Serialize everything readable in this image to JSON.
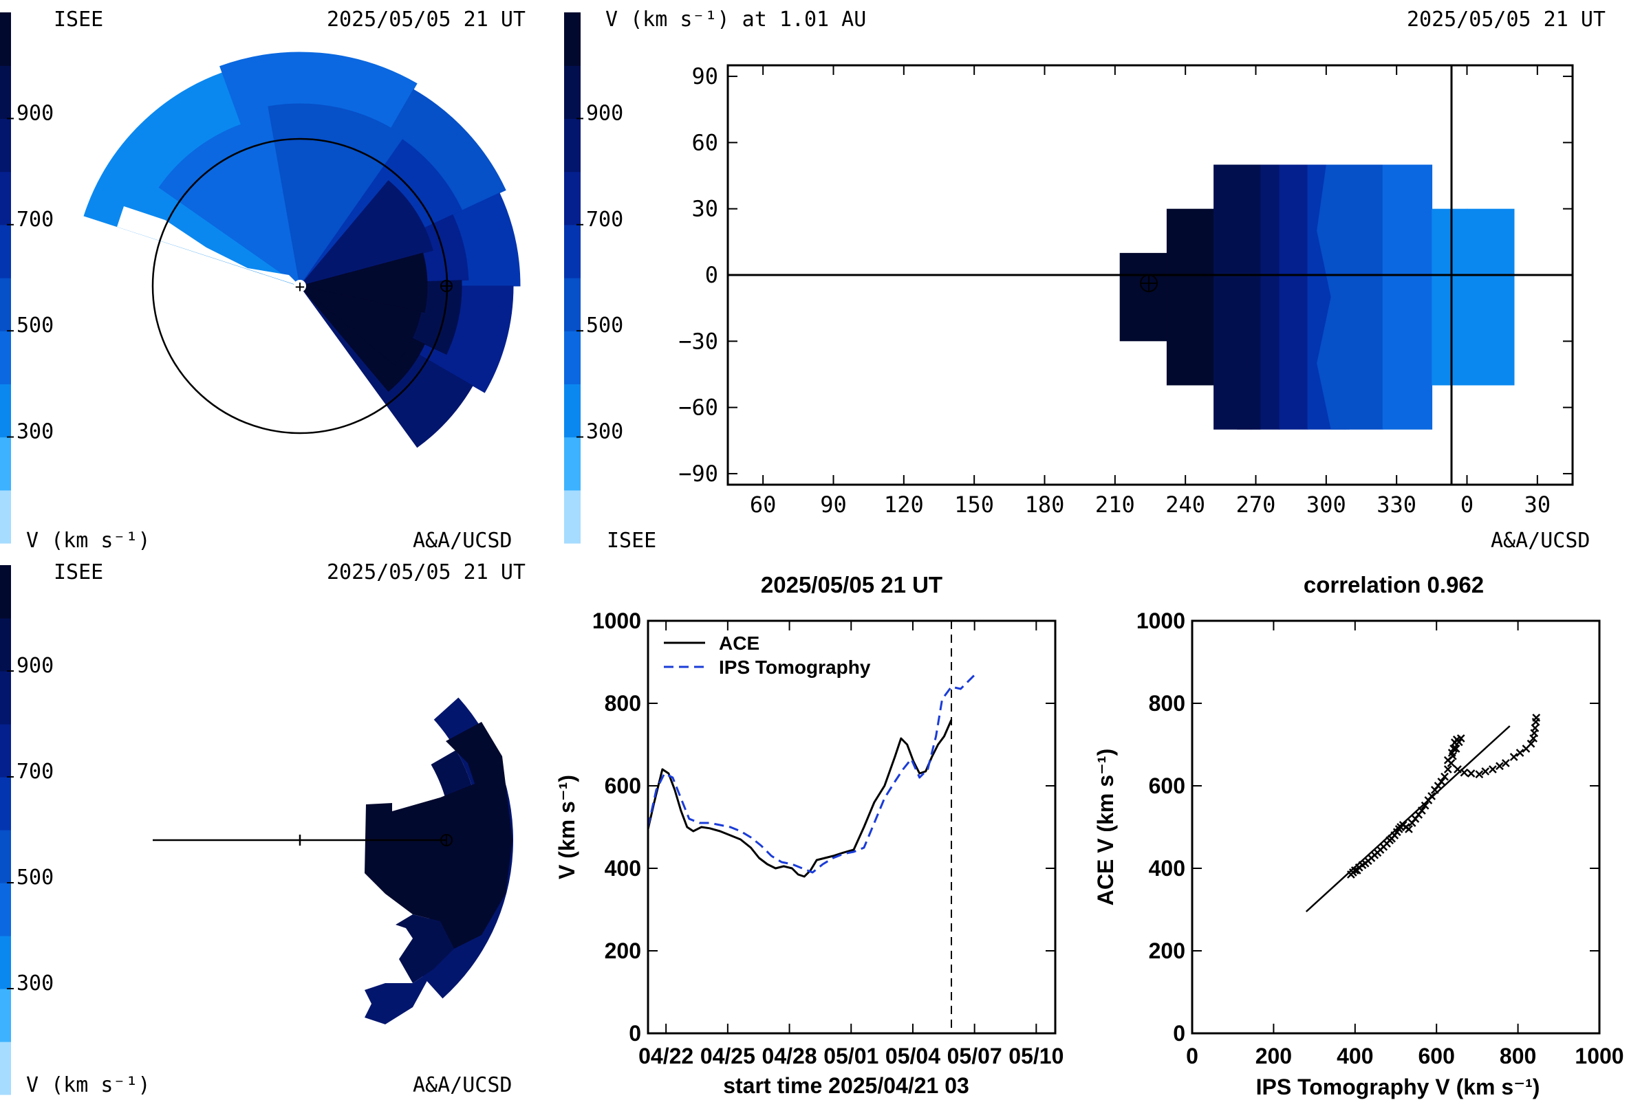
{
  "colorbar": {
    "colors": [
      "#a6dcff",
      "#3db2ff",
      "#0a88f0",
      "#0b68e0",
      "#0650c8",
      "#0335b0",
      "#04208e",
      "#03166e",
      "#020f4f",
      "#02092e"
    ],
    "ticks": [
      "300",
      "500",
      "700",
      "900"
    ]
  },
  "panel_tl": {
    "org": "ISEE",
    "date": "2025/05/05 21 UT",
    "vlabel": "V (km s⁻¹)",
    "credit": "A&A/UCSD",
    "sun_marker": "+"
  },
  "panel_tr": {
    "title": "V (km s⁻¹) at 1.01 AU",
    "date": "2025/05/05 21 UT",
    "org": "ISEE",
    "credit": "A&A/UCSD",
    "x_ticks": [
      "60",
      "90",
      "120",
      "150",
      "180",
      "210",
      "240",
      "270",
      "300",
      "330",
      "0",
      "30"
    ],
    "y_ticks": [
      "90",
      "60",
      "30",
      "0",
      "−30",
      "−60",
      "−90"
    ]
  },
  "panel_bl": {
    "org": "ISEE",
    "date": "2025/05/05 21 UT",
    "vlabel": "V (km s⁻¹)",
    "credit": "A&A/UCSD"
  },
  "chart_data": [
    {
      "type": "line",
      "title": "2025/05/05 21 UT",
      "xlabel": "start time 2025/04/21 03",
      "ylabel": "V (km s⁻¹)",
      "ylim": [
        0,
        1000
      ],
      "y_ticks": [
        "0",
        "200",
        "400",
        "600",
        "800",
        "1000"
      ],
      "x_ticks": [
        "04/22",
        "04/25",
        "04/28",
        "05/01",
        "05/04",
        "05/07",
        "05/10"
      ],
      "x_tick_days": [
        0.875,
        3.875,
        6.875,
        9.875,
        12.875,
        15.875,
        18.875
      ],
      "xlim_days": [
        0,
        19.8
      ],
      "now_marker_day": 14.75,
      "series": [
        {
          "name": "ACE",
          "color": "#000000",
          "dash": "solid",
          "x_days": [
            0,
            0.3,
            0.7,
            1.0,
            1.3,
            1.6,
            1.9,
            2.2,
            2.6,
            3.0,
            3.5,
            4.0,
            4.5,
            5.0,
            5.4,
            5.8,
            6.2,
            6.6,
            7.0,
            7.3,
            7.6,
            7.9,
            8.2,
            8.6,
            9.0,
            9.5,
            10.0,
            10.5,
            11.0,
            11.5,
            12.0,
            12.3,
            12.6,
            12.9,
            13.2,
            13.5,
            13.8,
            14.1,
            14.4,
            14.75
          ],
          "values": [
            495,
            560,
            640,
            630,
            590,
            540,
            500,
            490,
            500,
            497,
            490,
            480,
            470,
            450,
            425,
            410,
            400,
            405,
            400,
            385,
            380,
            395,
            420,
            425,
            430,
            438,
            445,
            500,
            560,
            600,
            670,
            715,
            700,
            660,
            630,
            635,
            670,
            700,
            720,
            760
          ]
        },
        {
          "name": "IPS Tomography",
          "color": "#1a3cd8",
          "dash": "dashed",
          "x_days": [
            0,
            0.4,
            0.8,
            1.2,
            1.6,
            2.0,
            2.5,
            3.0,
            3.5,
            4.0,
            4.5,
            5.0,
            5.5,
            6.0,
            6.5,
            7.0,
            7.5,
            8.0,
            8.5,
            9.0,
            9.5,
            10.0,
            10.5,
            11.0,
            11.5,
            12.0,
            12.4,
            12.8,
            13.2,
            13.6,
            14.0,
            14.3,
            14.75,
            15.2,
            15.9
          ],
          "values": [
            500,
            590,
            630,
            620,
            570,
            520,
            510,
            510,
            505,
            500,
            490,
            475,
            455,
            430,
            415,
            410,
            400,
            390,
            410,
            425,
            435,
            440,
            450,
            510,
            570,
            610,
            640,
            665,
            620,
            640,
            720,
            810,
            840,
            835,
            870
          ]
        }
      ],
      "legend_position": "top-left"
    },
    {
      "type": "scatter",
      "title": "correlation 0.962",
      "xlabel": "IPS Tomography V (km s⁻¹)",
      "ylabel": "ACE V (km s⁻¹)",
      "xlim": [
        0,
        1000
      ],
      "ylim": [
        0,
        1000
      ],
      "x_ticks": [
        "0",
        "200",
        "400",
        "600",
        "800",
        "1000"
      ],
      "y_ticks": [
        "0",
        "200",
        "400",
        "600",
        "800",
        "1000"
      ],
      "fit_line": {
        "x": [
          280,
          780
        ],
        "y": [
          295,
          745
        ]
      },
      "points": [
        [
          390,
          385
        ],
        [
          395,
          390
        ],
        [
          400,
          395
        ],
        [
          405,
          395
        ],
        [
          410,
          402
        ],
        [
          418,
          408
        ],
        [
          425,
          412
        ],
        [
          432,
          418
        ],
        [
          440,
          425
        ],
        [
          448,
          432
        ],
        [
          455,
          438
        ],
        [
          462,
          445
        ],
        [
          470,
          452
        ],
        [
          478,
          460
        ],
        [
          485,
          468
        ],
        [
          490,
          472
        ],
        [
          497,
          480
        ],
        [
          503,
          488
        ],
        [
          508,
          495
        ],
        [
          512,
          500
        ],
        [
          518,
          505
        ],
        [
          525,
          500
        ],
        [
          532,
          495
        ],
        [
          540,
          510
        ],
        [
          548,
          520
        ],
        [
          556,
          530
        ],
        [
          564,
          540
        ],
        [
          572,
          552
        ],
        [
          580,
          565
        ],
        [
          588,
          575
        ],
        [
          596,
          590
        ],
        [
          604,
          600
        ],
        [
          612,
          610
        ],
        [
          620,
          622
        ],
        [
          628,
          640
        ],
        [
          636,
          655
        ],
        [
          640,
          672
        ],
        [
          642,
          690
        ],
        [
          645,
          705
        ],
        [
          650,
          712
        ],
        [
          655,
          706
        ],
        [
          660,
          715
        ],
        [
          648,
          690
        ],
        [
          638,
          680
        ],
        [
          628,
          662
        ],
        [
          652,
          640
        ],
        [
          668,
          632
        ],
        [
          685,
          630
        ],
        [
          705,
          628
        ],
        [
          720,
          635
        ],
        [
          738,
          640
        ],
        [
          755,
          648
        ],
        [
          770,
          655
        ],
        [
          790,
          670
        ],
        [
          805,
          680
        ],
        [
          820,
          690
        ],
        [
          832,
          702
        ],
        [
          838,
          715
        ],
        [
          840,
          728
        ],
        [
          842,
          740
        ],
        [
          844,
          755
        ],
        [
          845,
          765
        ]
      ]
    }
  ]
}
